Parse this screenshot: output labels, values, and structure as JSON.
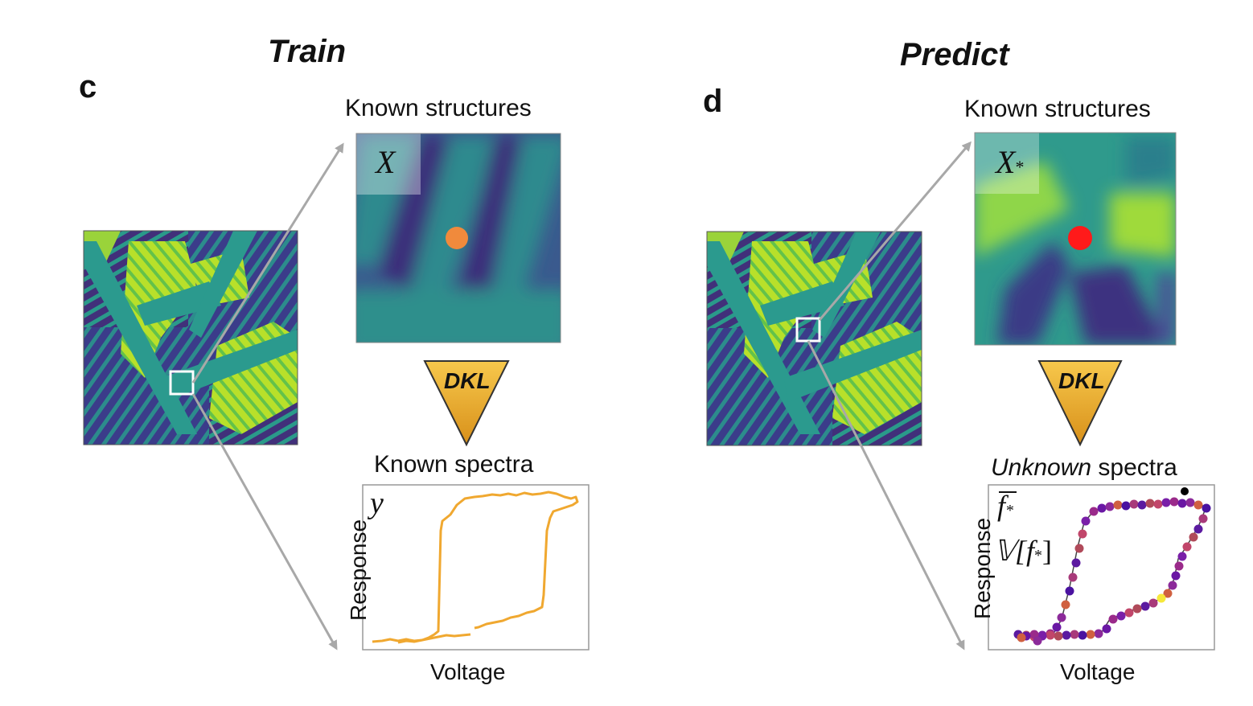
{
  "panel_c": {
    "letter": "c",
    "title": "Train",
    "structures_label": "Known structures",
    "structure_symbol": "X",
    "model_label": "DKL",
    "spectra_label": "Known spectra",
    "spectra_symbol": "y",
    "ylabel": "Response",
    "xlabel": "Voltage"
  },
  "panel_d": {
    "letter": "d",
    "title": "Predict",
    "structures_label": "Known structures",
    "structure_symbol": "X",
    "structure_symbol_sub": "*",
    "model_label": "DKL",
    "spectra_label_italic": "Unknown",
    "spectra_label_rest": " spectra",
    "mean_symbol": "f",
    "variance_symbol": "𝕍[f",
    "variance_close": "]",
    "ylabel": "Response",
    "xlabel": "Voltage"
  },
  "colors": {
    "train_curve": "#f0a830",
    "train_point": "#f08a3c",
    "predict_point": "#ff1a1a",
    "arrow": "#a8a8a8",
    "dkl_fill_top": "#f6c24a",
    "dkl_fill_bottom": "#d9921a"
  }
}
